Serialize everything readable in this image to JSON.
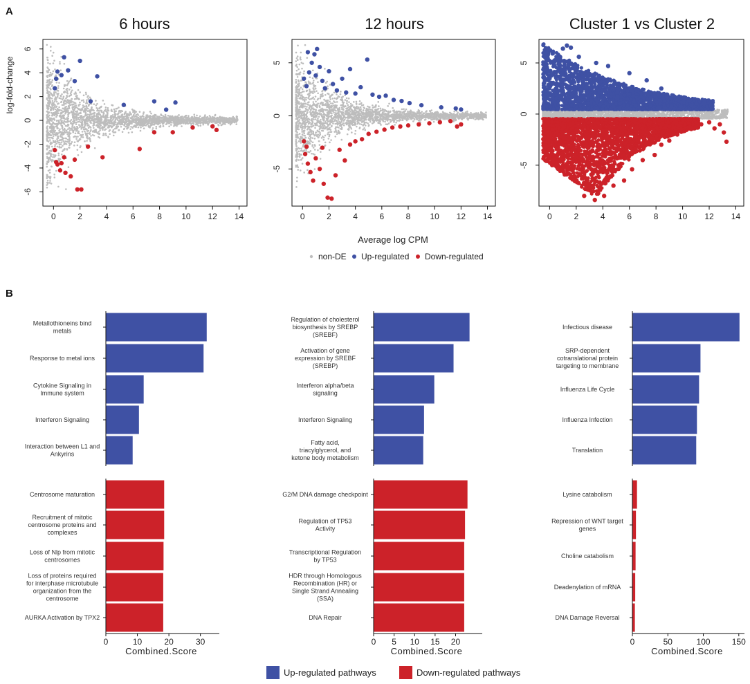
{
  "panel_labels": [
    "A",
    "B"
  ],
  "colors": {
    "nonDE": "#bdbdbd",
    "up": "#3f51a4",
    "down": "#cc2229"
  },
  "shared": {
    "x_label": "Average log CPM",
    "y_label": "log-fold-change",
    "legend": [
      "non-DE",
      "Up-regulated",
      "Down-regulated"
    ],
    "x_label_b": "Combined.Score",
    "legend_b": [
      "Up-regulated pathways",
      "Down-regulated pathways"
    ]
  },
  "chart_data": [
    {
      "type": "scatter",
      "title": "6 hours",
      "xlabel": "",
      "ylabel": "log-fold-change",
      "xlim": [
        -0.8,
        14.6
      ],
      "ylim": [
        -7.2,
        6.8
      ],
      "xticks": [
        0,
        2,
        4,
        6,
        8,
        10,
        12,
        14
      ],
      "yticks": [
        -6,
        -4,
        -2,
        0,
        2,
        4,
        6
      ],
      "nonDE_spread": {
        "max_abs_lfc_at_low_cpm": 6.5,
        "max_x": 14
      },
      "series": [
        {
          "name": "Up-regulated",
          "points": [
            [
              0.2,
              3.5
            ],
            [
              0.3,
              4.1
            ],
            [
              0.6,
              3.8
            ],
            [
              0.8,
              5.3
            ],
            [
              1.1,
              4.2
            ],
            [
              2.0,
              5.0
            ],
            [
              1.6,
              3.3
            ],
            [
              2.8,
              1.6
            ],
            [
              3.3,
              3.7
            ],
            [
              5.3,
              1.3
            ],
            [
              7.6,
              1.6
            ],
            [
              8.5,
              0.9
            ],
            [
              9.2,
              1.5
            ],
            [
              0.1,
              2.7
            ]
          ]
        },
        {
          "name": "Down-regulated",
          "points": [
            [
              0.1,
              -2.5
            ],
            [
              0.2,
              -3.5
            ],
            [
              0.3,
              -3.7
            ],
            [
              0.5,
              -4.2
            ],
            [
              0.9,
              -4.4
            ],
            [
              1.3,
              -4.7
            ],
            [
              1.6,
              -3.3
            ],
            [
              0.8,
              -3.1
            ],
            [
              1.8,
              -5.8
            ],
            [
              2.1,
              -5.8
            ],
            [
              2.6,
              -2.2
            ],
            [
              3.7,
              -3.1
            ],
            [
              6.5,
              -2.4
            ],
            [
              7.6,
              -1.0
            ],
            [
              9.0,
              -1.0
            ],
            [
              10.5,
              -0.6
            ],
            [
              12.0,
              -0.5
            ],
            [
              12.3,
              -0.8
            ],
            [
              0.6,
              -3.6
            ]
          ]
        }
      ]
    },
    {
      "type": "scatter",
      "title": "12 hours",
      "xlabel": "Average log CPM",
      "ylabel": "",
      "xlim": [
        -0.8,
        14.6
      ],
      "ylim": [
        -8.5,
        7.2
      ],
      "xticks": [
        0,
        2,
        4,
        6,
        8,
        10,
        12,
        14
      ],
      "yticks": [
        -5,
        0,
        5
      ],
      "nonDE_spread": {
        "max_abs_lfc_at_low_cpm": 6.8,
        "max_x": 14
      },
      "series": [
        {
          "name": "Up-regulated",
          "points": [
            [
              0.1,
              3.5
            ],
            [
              0.3,
              2.8
            ],
            [
              0.5,
              4.1
            ],
            [
              0.7,
              5.0
            ],
            [
              0.9,
              5.8
            ],
            [
              1.1,
              6.3
            ],
            [
              1.3,
              4.6
            ],
            [
              1.5,
              3.3
            ],
            [
              1.7,
              2.6
            ],
            [
              2.0,
              4.2
            ],
            [
              2.3,
              3.0
            ],
            [
              2.6,
              2.4
            ],
            [
              3.0,
              3.5
            ],
            [
              3.3,
              2.2
            ],
            [
              3.6,
              4.4
            ],
            [
              4.0,
              2.1
            ],
            [
              4.4,
              2.7
            ],
            [
              4.9,
              5.3
            ],
            [
              5.3,
              2.0
            ],
            [
              5.8,
              1.8
            ],
            [
              6.3,
              1.9
            ],
            [
              6.9,
              1.5
            ],
            [
              7.5,
              1.4
            ],
            [
              8.1,
              1.2
            ],
            [
              9.0,
              1.0
            ],
            [
              10.5,
              0.8
            ],
            [
              11.6,
              0.7
            ],
            [
              12.0,
              0.6
            ],
            [
              0.4,
              6.0
            ],
            [
              1.0,
              3.8
            ]
          ]
        },
        {
          "name": "Down-regulated",
          "points": [
            [
              0.1,
              -2.4
            ],
            [
              0.2,
              -3.6
            ],
            [
              0.4,
              -4.5
            ],
            [
              0.6,
              -5.3
            ],
            [
              0.8,
              -6.1
            ],
            [
              1.0,
              -4.0
            ],
            [
              1.3,
              -5.0
            ],
            [
              1.6,
              -6.4
            ],
            [
              1.9,
              -7.7
            ],
            [
              2.2,
              -7.8
            ],
            [
              2.5,
              -5.6
            ],
            [
              2.8,
              -3.2
            ],
            [
              3.2,
              -4.2
            ],
            [
              3.6,
              -2.7
            ],
            [
              4.0,
              -2.4
            ],
            [
              4.5,
              -2.2
            ],
            [
              5.0,
              -1.7
            ],
            [
              5.6,
              -1.5
            ],
            [
              6.2,
              -1.3
            ],
            [
              6.8,
              -1.1
            ],
            [
              7.4,
              -1.0
            ],
            [
              8.0,
              -0.9
            ],
            [
              8.8,
              -0.8
            ],
            [
              9.6,
              -0.7
            ],
            [
              10.4,
              -0.6
            ],
            [
              11.2,
              -0.5
            ],
            [
              11.7,
              -1.0
            ],
            [
              12.0,
              -0.8
            ],
            [
              0.3,
              -2.9
            ],
            [
              1.5,
              -3.0
            ]
          ]
        }
      ]
    },
    {
      "type": "scatter",
      "title": "Cluster 1 vs Cluster 2",
      "xlabel": "",
      "ylabel": "",
      "xlim": [
        -0.8,
        14.6
      ],
      "ylim": [
        -9.0,
        7.3
      ],
      "xticks": [
        0,
        2,
        4,
        6,
        8,
        10,
        12,
        14
      ],
      "yticks": [
        -5,
        0,
        5
      ],
      "nonDE_band": 0.45,
      "series": [
        {
          "name": "Up-regulated",
          "envelope": {
            "max_lfc_at_low_cpm": 6.6,
            "max_x": 12.3
          },
          "points": [
            [
              1.0,
              6.4
            ],
            [
              1.3,
              6.7
            ],
            [
              1.6,
              6.5
            ],
            [
              2.2,
              5.6
            ],
            [
              3.5,
              5.0
            ],
            [
              4.4,
              4.7
            ],
            [
              6.0,
              4.0
            ],
            [
              7.3,
              3.3
            ],
            [
              8.4,
              2.5
            ],
            [
              10.2,
              1.6
            ],
            [
              11.6,
              1.0
            ],
            [
              12.2,
              0.6
            ]
          ]
        },
        {
          "name": "Down-regulated",
          "envelope": {
            "min_lfc_at_low_cpm": -8.3,
            "max_x": 13.2
          },
          "points": [
            [
              2.6,
              -8.0
            ],
            [
              3.4,
              -8.4
            ],
            [
              4.1,
              -8.0
            ],
            [
              4.8,
              -7.0
            ],
            [
              5.6,
              -6.5
            ],
            [
              6.2,
              -5.4
            ],
            [
              7.0,
              -4.5
            ],
            [
              7.9,
              -4.0
            ],
            [
              8.4,
              -3.0
            ],
            [
              9.0,
              -2.6
            ],
            [
              9.6,
              -2.0
            ],
            [
              10.6,
              -1.3
            ],
            [
              11.4,
              -1.0
            ],
            [
              12.0,
              -0.8
            ],
            [
              12.8,
              -1.0
            ],
            [
              13.1,
              -1.8
            ],
            [
              13.3,
              -2.7
            ],
            [
              12.4,
              -1.4
            ]
          ]
        }
      ]
    },
    {
      "type": "bar",
      "orientation": "horizontal",
      "xlabel": "Combined.Score",
      "xlim": [
        0,
        36
      ],
      "xticks": [
        0,
        10,
        20,
        30
      ],
      "series": [
        {
          "name": "Up-regulated pathways",
          "categories": [
            "Metallothioneins bind metals",
            "Response to metal ions",
            "Cytokine Signaling in Immune system",
            "Interferon Signaling",
            "Interaction between L1 and Ankyrins"
          ],
          "values": [
            32,
            31,
            12,
            10.5,
            8.5
          ]
        },
        {
          "name": "Down-regulated pathways",
          "categories": [
            "Centrosome maturation",
            "Recruitment of mitotic centrosome proteins and complexes",
            "Loss of Nlp from mitotic centrosomes",
            "Loss of proteins required for interphase microtubule organization from the centrosome",
            "AURKA Activation by TPX2"
          ],
          "values": [
            18.5,
            18.5,
            18.3,
            18.2,
            18.2
          ]
        }
      ]
    },
    {
      "type": "bar",
      "orientation": "horizontal",
      "xlabel": "Combined.Score",
      "xlim": [
        0,
        26.5
      ],
      "xticks": [
        0,
        5,
        10,
        15,
        20
      ],
      "series": [
        {
          "name": "Up-regulated pathways",
          "categories": [
            "Regulation of cholesterol biosynthesis by SREBP (SREBF)",
            "Activation of gene expression by SREBF (SREBP)",
            "Interferon alpha/beta signaling",
            "Interferon Signaling",
            "Fatty acid, triacylglycerol, and ketone body metabolism"
          ],
          "values": [
            23.4,
            19.5,
            14.8,
            12.3,
            12.1
          ]
        },
        {
          "name": "Down-regulated pathways",
          "categories": [
            "G2/M DNA damage checkpoint",
            "Regulation of TP53 Activity",
            "Transcriptional Regulation by TP53",
            "HDR through Homologous Recombination (HR) or Single Strand Annealing (SSA)",
            "DNA Repair"
          ],
          "values": [
            22.9,
            22.3,
            22.1,
            22.1,
            22.1
          ]
        }
      ]
    },
    {
      "type": "bar",
      "orientation": "horizontal",
      "xlabel": "Combined.Score",
      "xlim": [
        0,
        158
      ],
      "xticks": [
        0,
        50,
        100,
        150
      ],
      "series": [
        {
          "name": "Up-regulated pathways",
          "categories": [
            "Infectious disease",
            "SRP-dependent cotranslational protein targeting to membrane",
            "Influenza Life Cycle",
            "Influenza Infection",
            "Translation"
          ],
          "values": [
            151,
            96,
            94,
            91,
            90
          ]
        },
        {
          "name": "Down-regulated pathways",
          "categories": [
            "Lysine catabolism",
            "Repression of WNT target genes",
            "Choline catabolism",
            "Deadenylation of mRNA",
            "DNA Damage Reversal"
          ],
          "values": [
            6.5,
            5.0,
            4.5,
            4.0,
            3.5
          ]
        }
      ]
    }
  ]
}
